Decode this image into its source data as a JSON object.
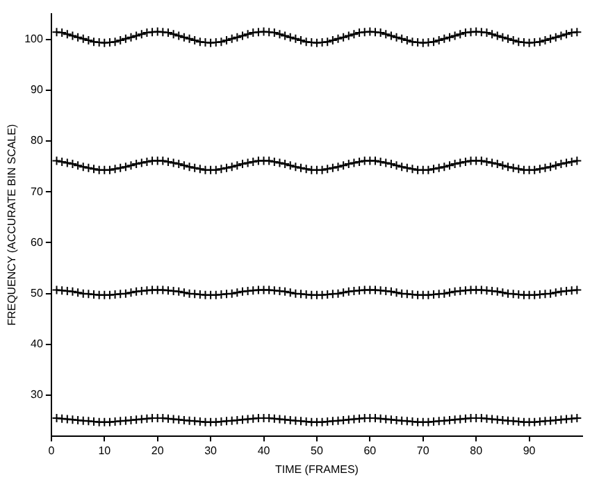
{
  "chart_data": {
    "type": "line",
    "xlabel": "TIME (FRAMES)",
    "ylabel": "FREQUENCY (ACCURATE BIN SCALE)",
    "x": [
      1,
      2,
      3,
      4,
      5,
      6,
      7,
      8,
      9,
      10,
      11,
      12,
      13,
      14,
      15,
      16,
      17,
      18,
      19,
      20,
      21,
      22,
      23,
      24,
      25,
      26,
      27,
      28,
      29,
      30,
      31,
      32,
      33,
      34,
      35,
      36,
      37,
      38,
      39,
      40,
      41,
      42,
      43,
      44,
      45,
      46,
      47,
      48,
      49,
      50,
      51,
      52,
      53,
      54,
      55,
      56,
      57,
      58,
      59,
      60,
      61,
      62,
      63,
      64,
      65,
      66,
      67,
      68,
      69,
      70,
      71,
      72,
      73,
      74,
      75,
      76,
      77,
      78,
      79,
      80,
      81,
      82,
      83,
      84,
      85,
      86,
      87,
      88,
      89,
      90,
      91,
      92,
      93,
      94,
      95,
      96,
      97,
      98,
      99
    ],
    "series": [
      {
        "color": "#000000",
        "values": [
          101.4,
          101.3,
          101.0,
          100.7,
          100.4,
          100.1,
          99.8,
          99.5,
          99.4,
          99.3,
          99.4,
          99.5,
          99.8,
          100.1,
          100.4,
          100.7,
          101.0,
          101.3,
          101.4,
          101.5,
          101.4,
          101.3,
          101.0,
          100.7,
          100.4,
          100.1,
          99.8,
          99.5,
          99.4,
          99.3,
          99.4,
          99.5,
          99.8,
          100.1,
          100.4,
          100.7,
          101.0,
          101.3,
          101.4,
          101.5,
          101.4,
          101.3,
          101.0,
          100.7,
          100.4,
          100.1,
          99.8,
          99.5,
          99.4,
          99.3,
          99.4,
          99.5,
          99.8,
          100.1,
          100.4,
          100.7,
          101.0,
          101.3,
          101.4,
          101.5,
          101.4,
          101.3,
          101.0,
          100.7,
          100.4,
          100.1,
          99.8,
          99.5,
          99.4,
          99.3,
          99.4,
          99.5,
          99.8,
          100.1,
          100.4,
          100.7,
          101.0,
          101.3,
          101.4,
          101.5,
          101.4,
          101.3,
          101.0,
          100.7,
          100.4,
          100.1,
          99.8,
          99.5,
          99.4,
          99.3,
          99.4,
          99.5,
          99.8,
          100.1,
          100.4,
          100.7,
          101.0,
          101.3,
          101.4
        ]
      },
      {
        "color": "#000000",
        "values": [
          76.1,
          75.9,
          75.7,
          75.5,
          75.2,
          74.9,
          74.7,
          74.5,
          74.3,
          74.3,
          74.3,
          74.5,
          74.7,
          74.9,
          75.2,
          75.5,
          75.7,
          75.9,
          76.1,
          76.1,
          76.1,
          75.9,
          75.7,
          75.5,
          75.2,
          74.9,
          74.7,
          74.5,
          74.3,
          74.3,
          74.3,
          74.5,
          74.7,
          74.9,
          75.2,
          75.5,
          75.7,
          75.9,
          76.1,
          76.1,
          76.1,
          75.9,
          75.7,
          75.5,
          75.2,
          74.9,
          74.7,
          74.5,
          74.3,
          74.3,
          74.3,
          74.5,
          74.7,
          74.9,
          75.2,
          75.5,
          75.7,
          75.9,
          76.1,
          76.1,
          76.1,
          75.9,
          75.7,
          75.5,
          75.2,
          74.9,
          74.7,
          74.5,
          74.3,
          74.3,
          74.3,
          74.5,
          74.7,
          74.9,
          75.2,
          75.5,
          75.7,
          75.9,
          76.1,
          76.1,
          76.1,
          75.9,
          75.7,
          75.5,
          75.2,
          74.9,
          74.7,
          74.5,
          74.3,
          74.3,
          74.3,
          74.5,
          74.7,
          74.9,
          75.2,
          75.5,
          75.7,
          75.9,
          76.1
        ]
      },
      {
        "color": "#000000",
        "values": [
          50.7,
          50.6,
          50.5,
          50.4,
          50.2,
          50.0,
          49.9,
          49.8,
          49.7,
          49.7,
          49.7,
          49.8,
          49.9,
          50.0,
          50.2,
          50.4,
          50.5,
          50.6,
          50.7,
          50.7,
          50.7,
          50.6,
          50.5,
          50.4,
          50.2,
          50.0,
          49.9,
          49.8,
          49.7,
          49.7,
          49.7,
          49.8,
          49.9,
          50.0,
          50.2,
          50.4,
          50.5,
          50.6,
          50.7,
          50.7,
          50.7,
          50.6,
          50.5,
          50.4,
          50.2,
          50.0,
          49.9,
          49.8,
          49.7,
          49.7,
          49.7,
          49.8,
          49.9,
          50.0,
          50.2,
          50.4,
          50.5,
          50.6,
          50.7,
          50.7,
          50.7,
          50.6,
          50.5,
          50.4,
          50.2,
          50.0,
          49.9,
          49.8,
          49.7,
          49.7,
          49.7,
          49.8,
          49.9,
          50.0,
          50.2,
          50.4,
          50.5,
          50.6,
          50.7,
          50.7,
          50.7,
          50.6,
          50.5,
          50.4,
          50.2,
          50.0,
          49.9,
          49.8,
          49.7,
          49.7,
          49.7,
          49.8,
          49.9,
          50.0,
          50.2,
          50.4,
          50.5,
          50.6,
          50.7
        ]
      },
      {
        "color": "#000000",
        "values": [
          25.5,
          25.4,
          25.3,
          25.2,
          25.1,
          25.0,
          24.9,
          24.8,
          24.7,
          24.7,
          24.7,
          24.8,
          24.9,
          25.0,
          25.1,
          25.2,
          25.3,
          25.4,
          25.5,
          25.5,
          25.5,
          25.4,
          25.3,
          25.2,
          25.1,
          25.0,
          24.9,
          24.8,
          24.7,
          24.7,
          24.7,
          24.8,
          24.9,
          25.0,
          25.1,
          25.2,
          25.3,
          25.4,
          25.5,
          25.5,
          25.5,
          25.4,
          25.3,
          25.2,
          25.1,
          25.0,
          24.9,
          24.8,
          24.7,
          24.7,
          24.7,
          24.8,
          24.9,
          25.0,
          25.1,
          25.2,
          25.3,
          25.4,
          25.5,
          25.5,
          25.5,
          25.4,
          25.3,
          25.2,
          25.1,
          25.0,
          24.9,
          24.8,
          24.7,
          24.7,
          24.7,
          24.8,
          24.9,
          25.0,
          25.1,
          25.2,
          25.3,
          25.4,
          25.5,
          25.5,
          25.5,
          25.4,
          25.3,
          25.2,
          25.1,
          25.0,
          24.9,
          24.8,
          24.7,
          24.7,
          24.7,
          24.8,
          24.9,
          25.0,
          25.1,
          25.2,
          25.3,
          25.4,
          25.5
        ]
      }
    ],
    "xlim": [
      0,
      100
    ],
    "ylim": [
      22,
      105
    ],
    "xticks": [
      0,
      10,
      20,
      30,
      40,
      50,
      60,
      70,
      80,
      90
    ],
    "yticks": [
      30,
      40,
      50,
      60,
      70,
      80,
      90,
      100
    ],
    "grid": false,
    "legend": false,
    "marker": "cross",
    "line_style": "solid"
  }
}
